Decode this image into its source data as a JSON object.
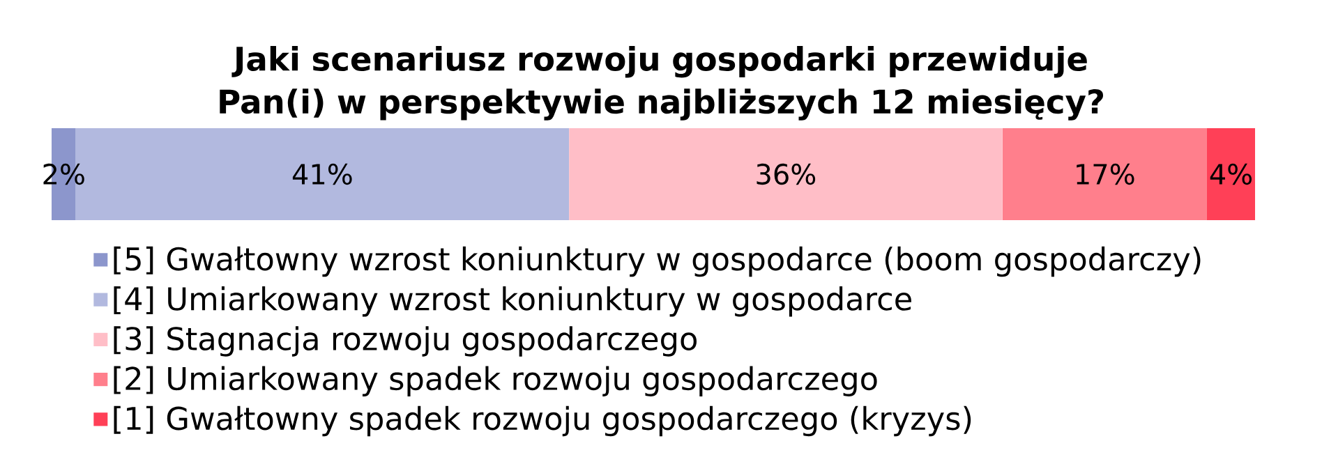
{
  "chart_data": {
    "type": "bar",
    "orientation": "horizontal",
    "stacked": true,
    "title": "Jaki scenariusz rozwoju gospodarki przewiduje Pan(i) w perspektywie najbliższych 12 miesięcy?",
    "categories": [
      null
    ],
    "xlim": [
      0,
      100
    ],
    "tick_labels": false,
    "legend": "bottom",
    "series": [
      {
        "name": "[5] Gwałtowny wzrost koniunktury w gospodarce (boom gospodarczy)",
        "color": "#8c96cc",
        "values": [
          2
        ],
        "value_labels": [
          "2%"
        ]
      },
      {
        "name": "[4] Umiarkowany wzrost koniunktury w gospodarce",
        "color": "#b2b9df",
        "values": [
          41
        ],
        "value_labels": [
          "41%"
        ]
      },
      {
        "name": "[3] Stagnacja rozwoju gospodarczego",
        "color": "#ffbec7",
        "values": [
          36
        ],
        "value_labels": [
          "36%"
        ]
      },
      {
        "name": "[2] Umiarkowany spadek rozwoju gospodarczego",
        "color": "#ff7f8c",
        "values": [
          17
        ],
        "value_labels": [
          "17%"
        ]
      },
      {
        "name": "[1] Gwałtowny spadek rozwoju gospodarczego (kryzys)",
        "color": "#ff4057",
        "values": [
          4
        ],
        "value_labels": [
          "4%"
        ]
      }
    ]
  }
}
